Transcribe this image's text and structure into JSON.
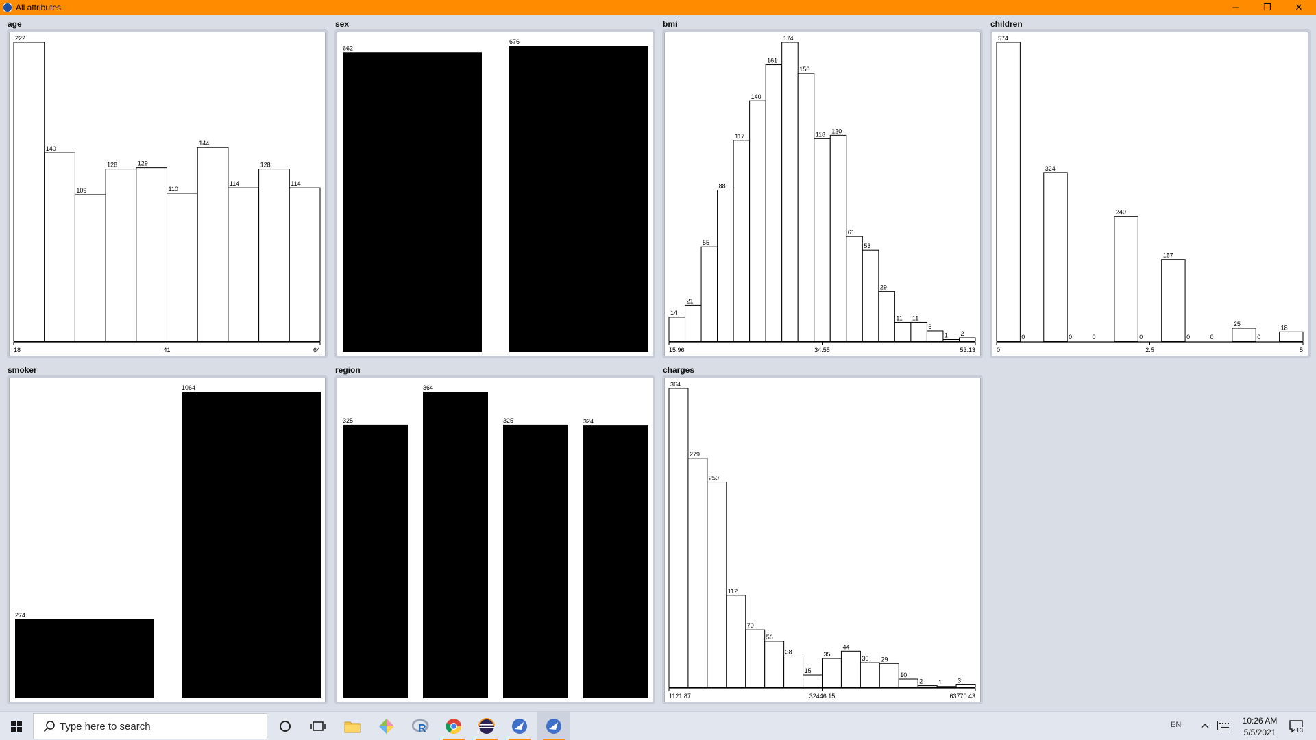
{
  "window": {
    "title": "All attributes",
    "minimize_glyph": "─",
    "maximize_glyph": "❐",
    "close_glyph": "✕",
    "accent": "#ff8c00"
  },
  "panels": [
    {
      "id": "age",
      "label": "age",
      "style": "hist",
      "axis": {
        "min_label": "18",
        "mid_label": "41",
        "max_label": "64"
      },
      "counts": [
        222,
        140,
        109,
        128,
        129,
        110,
        144,
        114,
        128,
        114
      ]
    },
    {
      "id": "sex",
      "label": "sex",
      "style": "bar",
      "counts": [
        662,
        676
      ]
    },
    {
      "id": "bmi",
      "label": "bmi",
      "style": "hist",
      "axis": {
        "min_label": "15.96",
        "mid_label": "34.55",
        "max_label": "53.13"
      },
      "counts": [
        14,
        21,
        55,
        88,
        117,
        140,
        161,
        174,
        156,
        118,
        120,
        61,
        53,
        29,
        11,
        11,
        6,
        1,
        2
      ]
    },
    {
      "id": "children",
      "label": "children",
      "style": "hist",
      "axis": {
        "min_label": "0",
        "mid_label": "2.5",
        "max_label": "5"
      },
      "counts": [
        574,
        0,
        324,
        0,
        0,
        240,
        0,
        157,
        0,
        0,
        25,
        0,
        18
      ]
    },
    {
      "id": "smoker",
      "label": "smoker",
      "style": "bar",
      "counts": [
        274,
        1064
      ]
    },
    {
      "id": "region",
      "label": "region",
      "style": "bar",
      "counts": [
        325,
        364,
        325,
        324
      ]
    },
    {
      "id": "charges",
      "label": "charges",
      "style": "hist",
      "axis": {
        "min_label": "1121.87",
        "mid_label": "32446.15",
        "max_label": "63770.43"
      },
      "counts": [
        364,
        279,
        250,
        112,
        70,
        56,
        38,
        15,
        35,
        44,
        30,
        29,
        10,
        2,
        1,
        3
      ]
    }
  ],
  "taskbar": {
    "search_placeholder": "Type here to search",
    "apps": [
      {
        "name": "cortana-icon",
        "active": false,
        "focused": false
      },
      {
        "name": "task-view-icon",
        "active": false,
        "focused": false
      },
      {
        "name": "file-explorer-icon",
        "active": false,
        "focused": false
      },
      {
        "name": "gem-app-icon",
        "active": false,
        "focused": false
      },
      {
        "name": "r-app-icon",
        "active": false,
        "focused": false
      },
      {
        "name": "chrome-icon",
        "active": true,
        "focused": false
      },
      {
        "name": "eclipse-icon",
        "active": true,
        "focused": false
      },
      {
        "name": "weka-icon",
        "active": true,
        "focused": false
      },
      {
        "name": "weka-window-icon",
        "active": true,
        "focused": true
      }
    ],
    "tray": {
      "language": "EN",
      "time": "10:26 AM",
      "date": "5/5/2021",
      "notifications": "13"
    }
  }
}
